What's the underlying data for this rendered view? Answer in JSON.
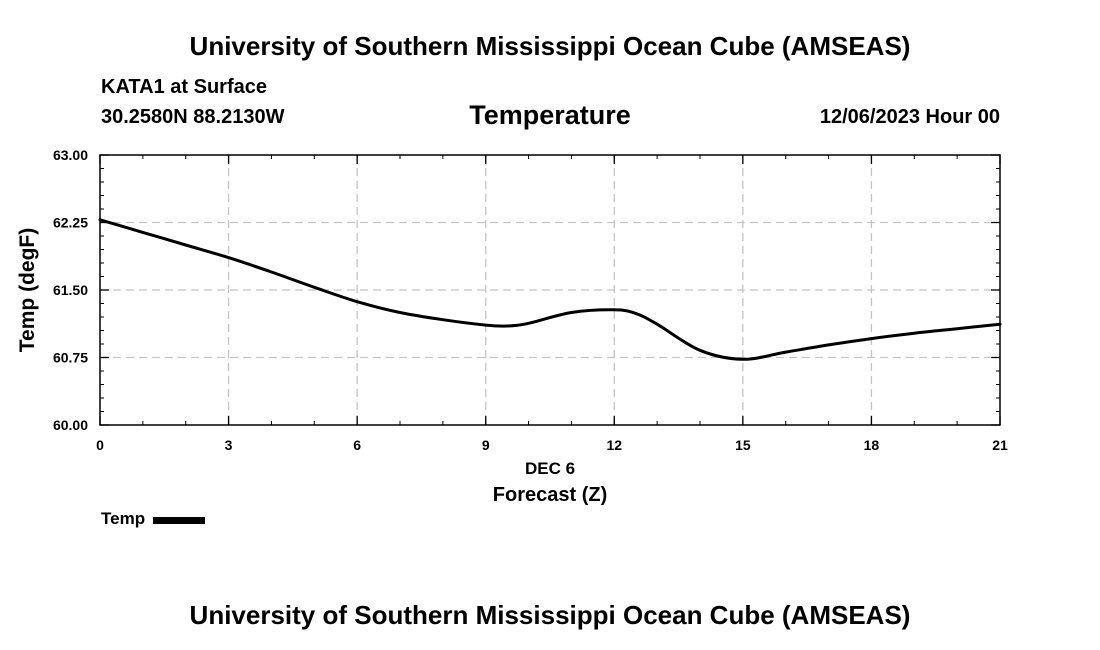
{
  "header": {
    "title": "University of Southern Mississippi Ocean Cube (AMSEAS)",
    "station": "KATA1 at Surface",
    "coords": "30.2580N  88.2130W",
    "variable": "Temperature",
    "datetime": "12/06/2023 Hour 00"
  },
  "footer": {
    "title": "University of Southern Mississippi Ocean Cube (AMSEAS)"
  },
  "legend": {
    "label": "Temp"
  },
  "chart_data": {
    "type": "line",
    "title": "Temperature",
    "xlabel": "Forecast (Z)",
    "xsublabel": "DEC 6",
    "ylabel": "Temp (degF)",
    "xlim": [
      0,
      21
    ],
    "ylim": [
      60.0,
      63.0
    ],
    "xticks": [
      0,
      3,
      6,
      9,
      12,
      15,
      18,
      21
    ],
    "xtick_labels": [
      "0",
      "3",
      "6",
      "9",
      "12",
      "15",
      "18",
      "21"
    ],
    "yticks": [
      60.0,
      60.75,
      61.5,
      62.25,
      63.0
    ],
    "ytick_labels": [
      "60.00",
      "60.75",
      "61.50",
      "62.25",
      "63.00"
    ],
    "grid": true,
    "legend_position": "bottom-left",
    "series": [
      {
        "name": "Temp",
        "color": "#000000",
        "x": [
          0,
          1,
          2,
          3,
          4,
          5,
          6,
          7,
          8,
          9,
          9.5,
          10,
          11,
          12,
          12.5,
          13,
          14,
          15,
          16,
          17,
          18,
          19,
          20,
          21
        ],
        "values": [
          62.28,
          62.14,
          62.0,
          61.86,
          61.7,
          61.53,
          61.37,
          61.25,
          61.17,
          61.11,
          61.1,
          61.13,
          61.25,
          61.28,
          61.24,
          61.12,
          60.83,
          60.73,
          60.81,
          60.89,
          60.96,
          61.02,
          61.07,
          61.12
        ]
      }
    ]
  }
}
